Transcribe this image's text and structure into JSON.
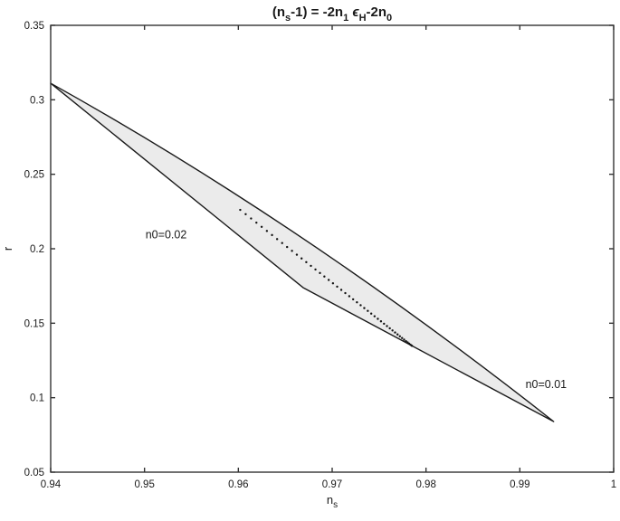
{
  "figure": {
    "background": "#ffffff"
  },
  "chart_data": {
    "type": "area",
    "title_plain": "(n_s-1) = -2n_1 ϵ_H-2n_0",
    "title_parts": [
      {
        "t": "(n"
      },
      {
        "t": "s",
        "sub": true
      },
      {
        "t": "-1) = -2n"
      },
      {
        "t": "1",
        "sub": true
      },
      {
        "t": " "
      },
      {
        "t": "ϵ",
        "italic": true
      },
      {
        "t": "H",
        "sub": true
      },
      {
        "t": "-2n"
      },
      {
        "t": "0",
        "sub": true
      }
    ],
    "xlabel_plain": "n_s",
    "xlabel_parts": [
      {
        "t": "n"
      },
      {
        "t": "s",
        "sub": true
      }
    ],
    "ylabel": "r",
    "xlim": [
      0.94,
      1.0
    ],
    "ylim": [
      0.05,
      0.35
    ],
    "xticks": [
      0.94,
      0.95,
      0.96,
      0.97,
      0.98,
      0.99,
      1.0
    ],
    "xtick_labels": [
      "0.94",
      "0.95",
      "0.96",
      "0.97",
      "0.98",
      "0.99",
      "1"
    ],
    "yticks": [
      0.05,
      0.1,
      0.15,
      0.2,
      0.25,
      0.3,
      0.35
    ],
    "ytick_labels": [
      "0.05",
      "0.1",
      "0.15",
      "0.2",
      "0.25",
      "0.3",
      "0.35"
    ],
    "grid": false,
    "legend": "none",
    "colors": {
      "axis": "#333333",
      "curve": "#1a1a1a",
      "region_fill": "#ebebeb",
      "dots": "#111111",
      "text": "#1a1a1a"
    },
    "region": {
      "description": "allowed band between the n0=0.02 and n0=0.01 boundary curves",
      "upper_curve": {
        "type": "quadratic_bezier",
        "p0": [
          0.94,
          0.3111
        ],
        "control": [
          0.9668,
          0.217
        ],
        "p2": [
          0.9936,
          0.084
        ]
      },
      "lower_polyline": [
        [
          0.94,
          0.3111
        ],
        [
          0.9669,
          0.1739
        ],
        [
          0.9936,
          0.084
        ]
      ]
    },
    "dotted_series": {
      "description": "dotted model trajectory inside the band, points compressing toward the lower boundary",
      "start": [
        0.9602,
        0.2261
      ],
      "end": [
        0.9785,
        0.1348
      ],
      "n_points": 48,
      "spacing_power": 1.5,
      "dot_radius_px": 1.2
    },
    "annotations": [
      {
        "text": "n0=0.02",
        "x": 0.9523,
        "y": 0.2095
      },
      {
        "text": "n0=0.01",
        "x": 0.9928,
        "y": 0.1089
      }
    ]
  }
}
